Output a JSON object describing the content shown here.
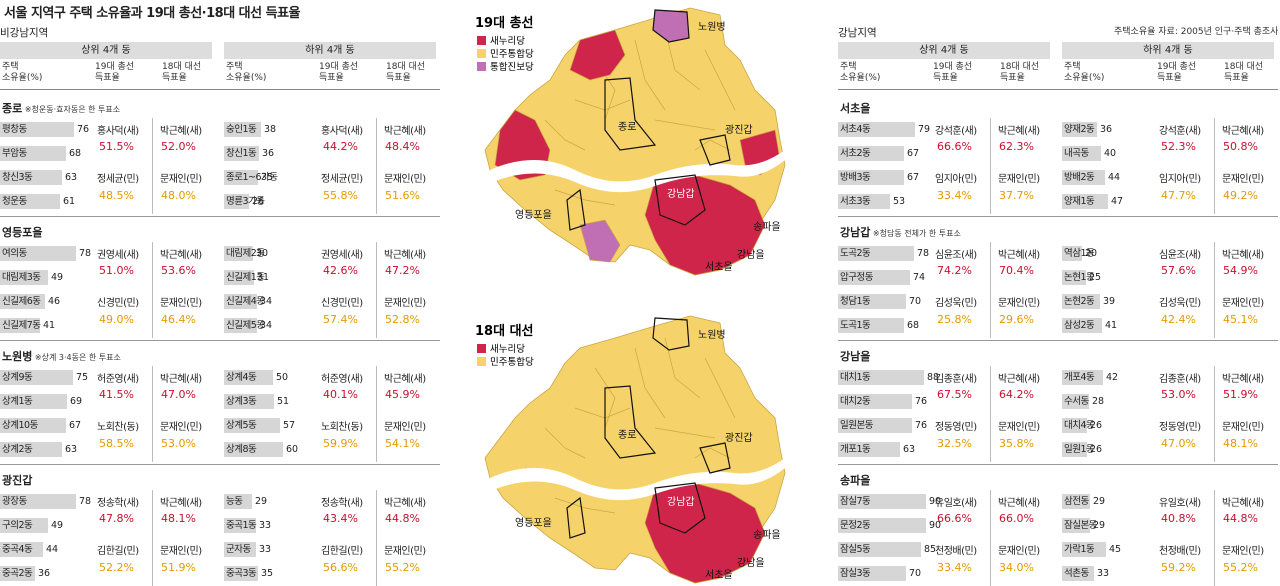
{
  "title": "서울 지역구 주택 소유율과 19대 총선·18대 대선 득표율",
  "left": {
    "area": "비강남지역",
    "upper": "상위 4개 동",
    "lower": "하위 4개 동",
    "c1": "주택",
    "c2": "소유율(%)",
    "c3": "19대 총선",
    "c4": "득표율",
    "c5": "18대 대선",
    "c6": "득표율",
    "districts": [
      {
        "name": "종로",
        "note": "※청운동·효자동은 한 투표소",
        "up": {
          "dongs": [
            [
              "평창동",
              "76"
            ],
            [
              "부암동",
              "68"
            ],
            [
              "창신3동",
              "63"
            ],
            [
              "청운동",
              "61"
            ]
          ],
          "c1": "홍사덕(새)",
          "p1": "51.5%",
          "d1": "박근혜(새)",
          "q1": "52.0%",
          "c2": "정세균(민)",
          "p2": "48.5%",
          "d2": "문재인(민)",
          "q2": "48.0%"
        },
        "lo": {
          "dongs": [
            [
              "숭인1동",
              "38"
            ],
            [
              "창신1동",
              "36"
            ],
            [
              "종로1~6가동",
              "35"
            ],
            [
              "명륜3가동",
              "26"
            ]
          ],
          "c1": "홍사덕(새)",
          "p1": "44.2%",
          "d1": "박근혜(새)",
          "q1": "48.4%",
          "c2": "정세균(민)",
          "p2": "55.8%",
          "d2": "문재인(민)",
          "q2": "51.6%"
        }
      },
      {
        "name": "영등포을",
        "note": "",
        "up": {
          "dongs": [
            [
              "여의동",
              "78"
            ],
            [
              "대림제3동",
              "49"
            ],
            [
              "신길제6동",
              "46"
            ],
            [
              "신길제7동",
              "41"
            ]
          ],
          "c1": "권영세(새)",
          "p1": "51.0%",
          "d1": "박근혜(새)",
          "q1": "53.6%",
          "c2": "신경민(민)",
          "p2": "49.0%",
          "d2": "문재인(민)",
          "q2": "46.4%"
        },
        "lo": {
          "dongs": [
            [
              "대림제2동",
              "30"
            ],
            [
              "신길제1동",
              "31"
            ],
            [
              "신길제4동",
              "34"
            ],
            [
              "신길제5동",
              "34"
            ]
          ],
          "c1": "권영세(새)",
          "p1": "42.6%",
          "d1": "박근혜(새)",
          "q1": "47.2%",
          "c2": "신경민(민)",
          "p2": "57.4%",
          "d2": "문재인(민)",
          "q2": "52.8%"
        }
      },
      {
        "name": "노원병",
        "note": "※상계 3·4동은 한 투표소",
        "up": {
          "dongs": [
            [
              "상계9동",
              "75"
            ],
            [
              "상계1동",
              "69"
            ],
            [
              "상계10동",
              "67"
            ],
            [
              "상계2동",
              "63"
            ]
          ],
          "c1": "허준영(새)",
          "p1": "41.5%",
          "d1": "박근혜(새)",
          "q1": "47.0%",
          "c2": "노회찬(동)",
          "p2": "58.5%",
          "d2": "문재인(민)",
          "q2": "53.0%"
        },
        "lo": {
          "dongs": [
            [
              "상계4동",
              "50"
            ],
            [
              "상계3동",
              "51"
            ],
            [
              "상계5동",
              "57"
            ],
            [
              "상계8동",
              "60"
            ]
          ],
          "c1": "허준영(새)",
          "p1": "40.1%",
          "d1": "박근혜(새)",
          "q1": "45.9%",
          "c2": "노회찬(동)",
          "p2": "59.9%",
          "d2": "문재인(민)",
          "q2": "54.1%"
        }
      },
      {
        "name": "광진갑",
        "note": "",
        "up": {
          "dongs": [
            [
              "광장동",
              "78"
            ],
            [
              "구의2동",
              "49"
            ],
            [
              "중곡4동",
              "44"
            ],
            [
              "중곡2동",
              "36"
            ]
          ],
          "c1": "정송학(새)",
          "p1": "47.8%",
          "d1": "박근혜(새)",
          "q1": "48.1%",
          "c2": "김한길(민)",
          "p2": "52.2%",
          "d2": "문재인(민)",
          "q2": "51.9%"
        },
        "lo": {
          "dongs": [
            [
              "능동",
              "29"
            ],
            [
              "중곡1동",
              "33"
            ],
            [
              "군자동",
              "33"
            ],
            [
              "중곡3동",
              "35"
            ]
          ],
          "c1": "정송학(새)",
          "p1": "43.4%",
          "d1": "박근혜(새)",
          "q1": "44.8%",
          "c2": "김한길(민)",
          "p2": "56.6%",
          "d2": "문재인(민)",
          "q2": "55.2%"
        }
      }
    ]
  },
  "right": {
    "area": "강남지역",
    "source": "주택소유율 자료: 2005년 인구·주택 총조사",
    "upper": "상위 4개 동",
    "lower": "하위 4개 동",
    "c1": "주택",
    "c2": "소유율(%)",
    "c3": "19대 총선",
    "c4": "득표율",
    "c5": "18대 대선",
    "c6": "득표율",
    "districts": [
      {
        "name": "서초을",
        "note": "",
        "up": {
          "dongs": [
            [
              "서초4동",
              "79"
            ],
            [
              "서초2동",
              "67"
            ],
            [
              "방배3동",
              "67"
            ],
            [
              "서초3동",
              "53"
            ]
          ],
          "c1": "강석훈(새)",
          "p1": "66.6%",
          "d1": "박근혜(새)",
          "q1": "62.3%",
          "c2": "임지아(민)",
          "p2": "33.4%",
          "d2": "문재인(민)",
          "q2": "37.7%"
        },
        "lo": {
          "dongs": [
            [
              "양재2동",
              "36"
            ],
            [
              "내곡동",
              "40"
            ],
            [
              "방배2동",
              "44"
            ],
            [
              "양재1동",
              "47"
            ]
          ],
          "c1": "강석훈(새)",
          "p1": "52.3%",
          "d1": "박근혜(새)",
          "q1": "50.8%",
          "c2": "임지아(민)",
          "p2": "47.7%",
          "d2": "문재인(민)",
          "q2": "49.2%"
        }
      },
      {
        "name": "강남갑",
        "note": "※청담동 전체가 한 투표소",
        "up": {
          "dongs": [
            [
              "도곡2동",
              "78"
            ],
            [
              "압구정동",
              "74"
            ],
            [
              "청담1동",
              "70"
            ],
            [
              "도곡1동",
              "68"
            ]
          ],
          "c1": "심윤조(새)",
          "p1": "74.2%",
          "d1": "박근혜(새)",
          "q1": "70.4%",
          "c2": "김성욱(민)",
          "p2": "25.8%",
          "d2": "문재인(민)",
          "q2": "29.6%"
        },
        "lo": {
          "dongs": [
            [
              "역삼1동",
              "20"
            ],
            [
              "논현1동",
              "25"
            ],
            [
              "논현2동",
              "39"
            ],
            [
              "삼성2동",
              "41"
            ]
          ],
          "c1": "심윤조(새)",
          "p1": "57.6%",
          "d1": "박근혜(새)",
          "q1": "54.9%",
          "c2": "김성욱(민)",
          "p2": "42.4%",
          "d2": "문재인(민)",
          "q2": "45.1%"
        }
      },
      {
        "name": "강남을",
        "note": "",
        "up": {
          "dongs": [
            [
              "대치1동",
              "88"
            ],
            [
              "대치2동",
              "76"
            ],
            [
              "일원본동",
              "76"
            ],
            [
              "개포1동",
              "63"
            ]
          ],
          "c1": "김종훈(새)",
          "p1": "67.5%",
          "d1": "박근혜(새)",
          "q1": "64.2%",
          "c2": "정동영(민)",
          "p2": "32.5%",
          "d2": "문재인(민)",
          "q2": "35.8%"
        },
        "lo": {
          "dongs": [
            [
              "개포4동",
              "42"
            ],
            [
              "수서동",
              "28"
            ],
            [
              "대치4동",
              "26"
            ],
            [
              "일원1동",
              "26"
            ]
          ],
          "c1": "김종훈(새)",
          "p1": "53.0%",
          "d1": "박근혜(새)",
          "q1": "51.9%",
          "c2": "정동영(민)",
          "p2": "47.0%",
          "d2": "문재인(민)",
          "q2": "48.1%"
        }
      },
      {
        "name": "송파을",
        "note": "",
        "up": {
          "dongs": [
            [
              "잠실7동",
              "90"
            ],
            [
              "문정2동",
              "90"
            ],
            [
              "잠실5동",
              "85"
            ],
            [
              "잠실3동",
              "70"
            ]
          ],
          "c1": "유일호(새)",
          "p1": "66.6%",
          "d1": "박근혜(새)",
          "q1": "66.0%",
          "c2": "천정배(민)",
          "p2": "33.4%",
          "d2": "문재인(민)",
          "q2": "34.0%"
        },
        "lo": {
          "dongs": [
            [
              "삼전동",
              "29"
            ],
            [
              "잠실본동",
              "29"
            ],
            [
              "가락1동",
              "45"
            ],
            [
              "석촌동",
              "33"
            ]
          ],
          "c1": "유일호(새)",
          "p1": "40.8%",
          "d1": "박근혜(새)",
          "q1": "44.8%",
          "c2": "천정배(민)",
          "p2": "59.2%",
          "d2": "문재인(민)",
          "q2": "55.2%"
        }
      }
    ]
  },
  "map1": {
    "title": "19대 총선",
    "legend": [
      "새누리당",
      "민주통합당",
      "통합진보당"
    ],
    "labels": [
      "노원병",
      "종로",
      "광진갑",
      "강남갑",
      "영등포을",
      "송파을",
      "강남을",
      "서초을"
    ]
  },
  "map2": {
    "title": "18대 대선",
    "legend": [
      "새누리당",
      "민주통합당"
    ],
    "labels": [
      "노원병",
      "종로",
      "광진갑",
      "강남갑",
      "영등포을",
      "송파을",
      "강남을",
      "서초을"
    ]
  },
  "colors": {
    "saenuri": "#d0254a",
    "minju": "#f6d36a",
    "tonghap": "#c06fb4",
    "river": "#ffffff",
    "border": "#c9a640"
  }
}
